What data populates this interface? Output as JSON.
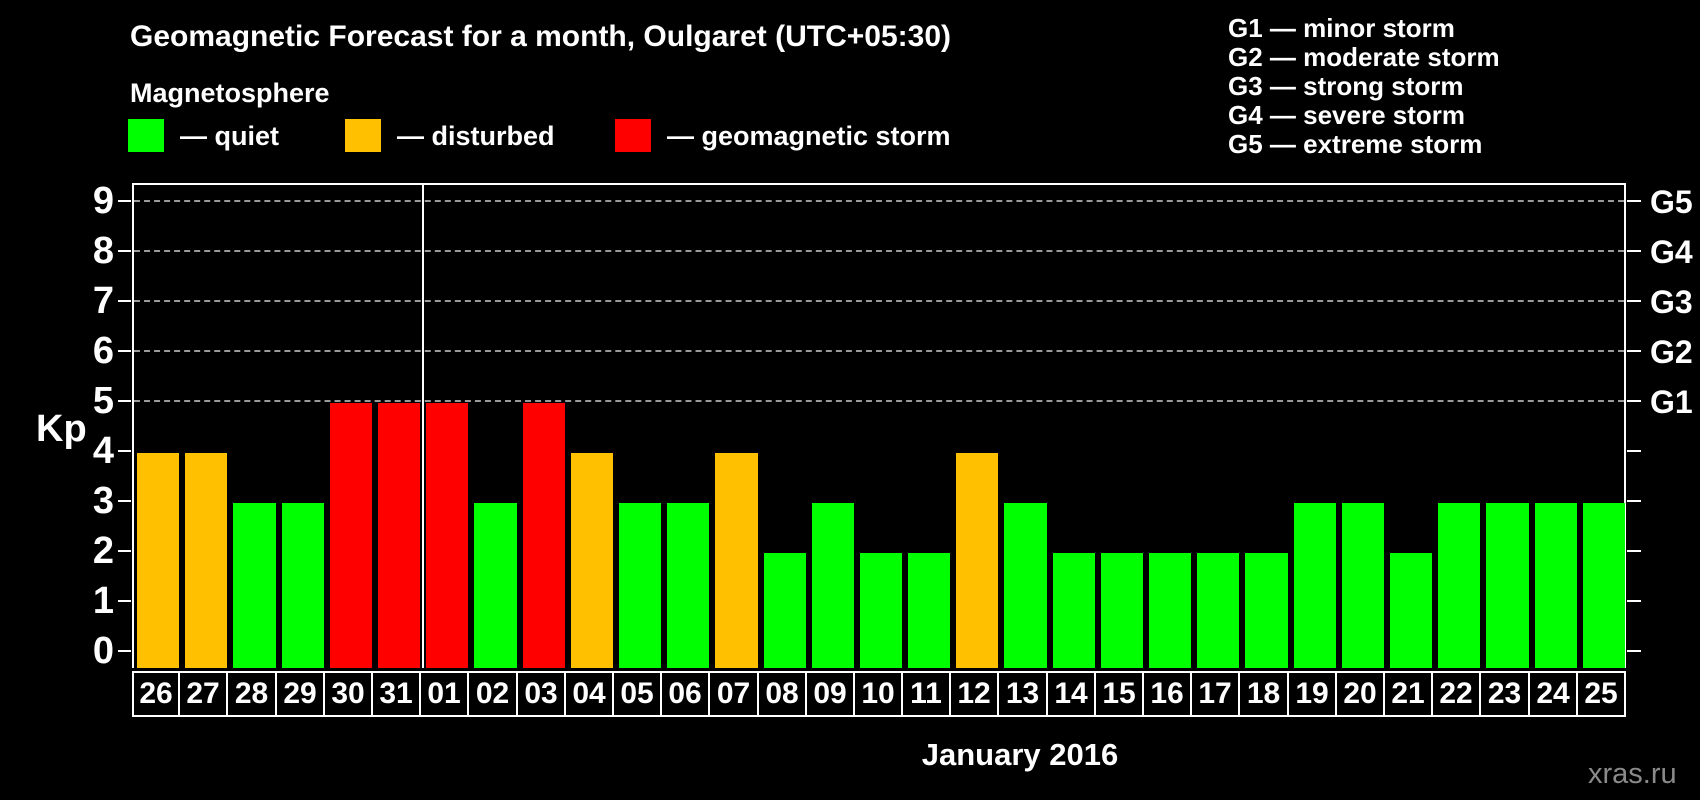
{
  "title": "Geomagnetic Forecast for a month, Oulgaret (UTC+05:30)",
  "legend": {
    "heading": "Magnetosphere",
    "items": [
      {
        "name": "quiet",
        "label": "— quiet",
        "color": "#00ff00"
      },
      {
        "name": "disturbed",
        "label": "— disturbed",
        "color": "#ffc000"
      },
      {
        "name": "storm",
        "label": "— geomagnetic storm",
        "color": "#ff0000"
      }
    ]
  },
  "storm_scale_legend": {
    "lines": [
      "G1 — minor storm",
      "G2 — moderate storm",
      "G3 — strong storm",
      "G4 — severe storm",
      "G5 — extreme storm"
    ]
  },
  "chart_data": {
    "type": "bar",
    "title": "Geomagnetic Forecast for a month, Oulgaret (UTC+05:30)",
    "ylabel": "Kp",
    "xlabel": "January 2016",
    "ylim": [
      0,
      9
    ],
    "yticks": [
      0,
      1,
      2,
      3,
      4,
      5,
      6,
      7,
      8,
      9
    ],
    "gridlines_at": [
      5,
      6,
      7,
      8,
      9
    ],
    "grid": true,
    "right_axis_labels": [
      {
        "label": "G1",
        "value": 5
      },
      {
        "label": "G2",
        "value": 6
      },
      {
        "label": "G3",
        "value": 7
      },
      {
        "label": "G4",
        "value": 8
      },
      {
        "label": "G5",
        "value": 9
      }
    ],
    "year_boundary_after_index": 5,
    "categories": [
      "26",
      "27",
      "28",
      "29",
      "30",
      "31",
      "01",
      "02",
      "03",
      "04",
      "05",
      "06",
      "07",
      "08",
      "09",
      "10",
      "11",
      "12",
      "13",
      "14",
      "15",
      "16",
      "17",
      "18",
      "19",
      "20",
      "21",
      "22",
      "23",
      "24",
      "25"
    ],
    "values": [
      4,
      4,
      3,
      3,
      5,
      5,
      5,
      3,
      5,
      4,
      3,
      3,
      4,
      2,
      3,
      2,
      2,
      4,
      3,
      2,
      2,
      2,
      2,
      2,
      3,
      3,
      2,
      3,
      3,
      3,
      3
    ],
    "statuses": [
      "disturbed",
      "disturbed",
      "quiet",
      "quiet",
      "storm",
      "storm",
      "storm",
      "quiet",
      "storm",
      "disturbed",
      "quiet",
      "quiet",
      "disturbed",
      "quiet",
      "quiet",
      "quiet",
      "quiet",
      "disturbed",
      "quiet",
      "quiet",
      "quiet",
      "quiet",
      "quiet",
      "quiet",
      "quiet",
      "quiet",
      "quiet",
      "quiet",
      "quiet",
      "quiet",
      "quiet"
    ]
  },
  "xaxis_title": "January 2016",
  "watermark": "xras.ru",
  "colors": {
    "quiet": "#00ff00",
    "disturbed": "#ffc000",
    "storm": "#ff0000",
    "axis": "#ffffff",
    "grid": "#9a9a9a",
    "watermark": "#8a8a8a"
  }
}
